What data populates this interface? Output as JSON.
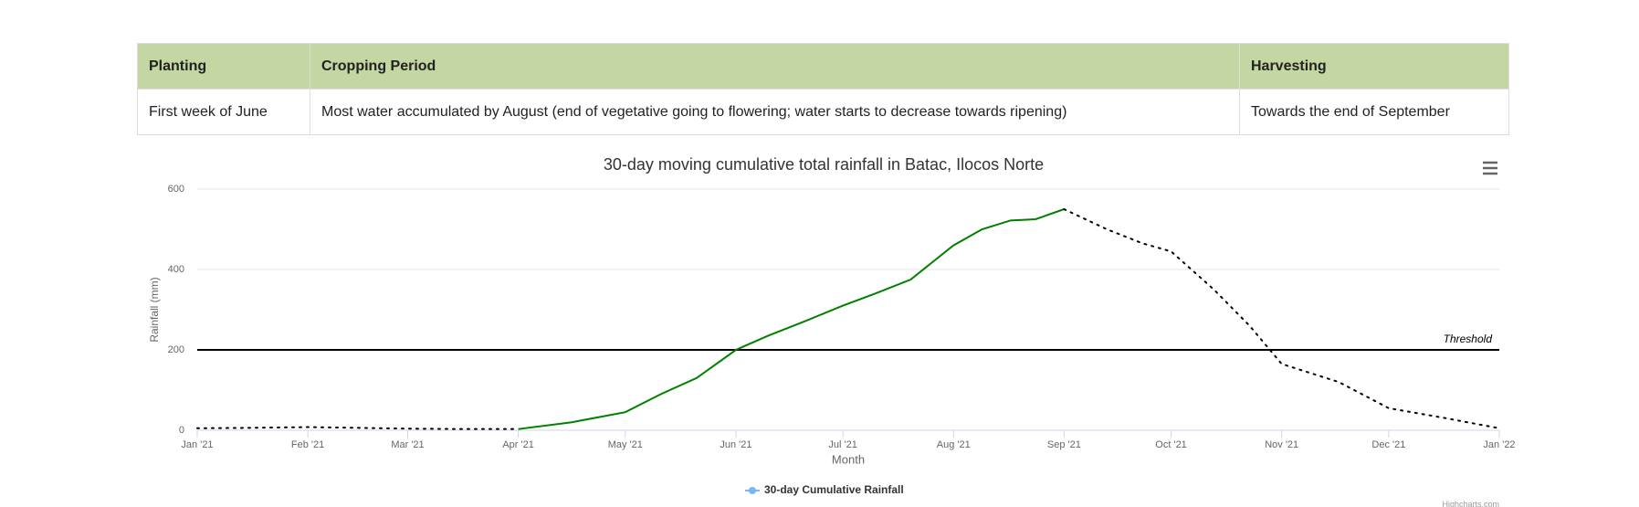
{
  "table": {
    "headers": [
      "Planting",
      "Cropping Period",
      "Harvesting"
    ],
    "rows": [
      [
        "First week of June",
        "Most water accumulated by August (end of vegetative going to flowering; water starts to decrease towards ripening)",
        "Towards the end of September"
      ]
    ]
  },
  "chart_data": {
    "type": "line",
    "title": "30-day moving cumulative total rainfall in Batac, Ilocos Norte",
    "x_label": "Month",
    "y_label": "Rainfall (mm)",
    "x": [
      0,
      15,
      31,
      45,
      59,
      75,
      90,
      105,
      120,
      130,
      140,
      151,
      160,
      170,
      181,
      190,
      200,
      212,
      220,
      228,
      235,
      243,
      255,
      265,
      273,
      285,
      295,
      304,
      320,
      334,
      350,
      365
    ],
    "series": [
      {
        "name": "30-day Cumulative Rainfall",
        "color": "#7cb5ec",
        "values": [
          5,
          6,
          8,
          6,
          4,
          3,
          3,
          20,
          45,
          90,
          130,
          200,
          235,
          270,
          310,
          340,
          375,
          460,
          500,
          522,
          525,
          550,
          500,
          465,
          445,
          350,
          260,
          165,
          120,
          55,
          30,
          5
        ],
        "zones": [
          {
            "until": 90,
            "color": "#000000",
            "dash": true
          },
          {
            "until": 243,
            "color": "#008000",
            "dash": false
          },
          {
            "color": "#000000",
            "dash": true
          }
        ]
      }
    ],
    "xlim": [
      0,
      365
    ],
    "xticks": [
      {
        "value": 0,
        "label": "Jan '21"
      },
      {
        "value": 31,
        "label": "Feb '21"
      },
      {
        "value": 59,
        "label": "Mar '21"
      },
      {
        "value": 90,
        "label": "Apr '21"
      },
      {
        "value": 120,
        "label": "May '21"
      },
      {
        "value": 151,
        "label": "Jun '21"
      },
      {
        "value": 181,
        "label": "Jul '21"
      },
      {
        "value": 212,
        "label": "Aug '21"
      },
      {
        "value": 243,
        "label": "Sep '21"
      },
      {
        "value": 273,
        "label": "Oct '21"
      },
      {
        "value": 304,
        "label": "Nov '21"
      },
      {
        "value": 334,
        "label": "Dec '21"
      },
      {
        "value": 365,
        "label": "Jan '22"
      }
    ],
    "ylim": [
      0,
      600
    ],
    "yticks": [
      0,
      200,
      400,
      600
    ],
    "grid": true,
    "threshold": {
      "value": 200,
      "label": "Threshold"
    },
    "credits": "Highcharts.com"
  }
}
